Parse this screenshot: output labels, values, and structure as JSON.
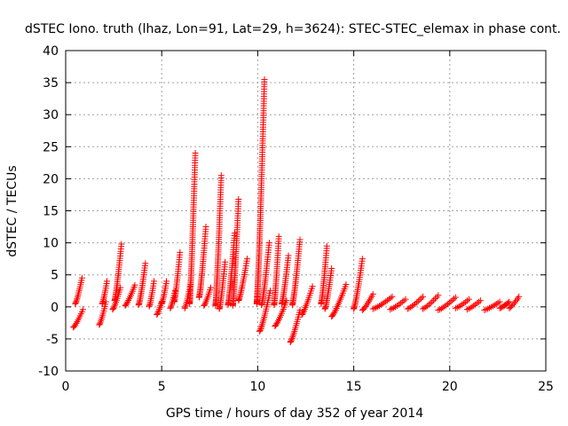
{
  "chart_data": {
    "type": "scatter",
    "title": "dSTEC Iono. truth (lhaz, Lon=91, Lat=29, h=3624): STEC-STEC_elemax in phase cont.",
    "xlabel": "GPS time / hours of day 352 of year 2014",
    "ylabel": "dSTEC  / TECUs",
    "xlim": [
      0,
      25
    ],
    "ylim": [
      -10,
      40
    ],
    "xticks": [
      0,
      5,
      10,
      15,
      20,
      25
    ],
    "yticks": [
      -10,
      -5,
      0,
      5,
      10,
      15,
      20,
      25,
      30,
      35,
      40
    ],
    "grid": true,
    "marker": "+",
    "color": "#ff0000",
    "arcs": [
      {
        "x": [
          0.4,
          0.9
        ],
        "y": [
          -3.2,
          -0.4
        ]
      },
      {
        "x": [
          0.5,
          0.85
        ],
        "y": [
          0.5,
          4.5
        ]
      },
      {
        "x": [
          1.75,
          2.1
        ],
        "y": [
          -2.8,
          0.8
        ]
      },
      {
        "x": [
          1.9,
          2.15
        ],
        "y": [
          0.5,
          4.0
        ]
      },
      {
        "x": [
          2.45,
          2.85
        ],
        "y": [
          -0.4,
          3.0
        ]
      },
      {
        "x": [
          2.55,
          2.9
        ],
        "y": [
          1.0,
          9.8
        ]
      },
      {
        "x": [
          3.1,
          3.6
        ],
        "y": [
          0.2,
          3.4
        ]
      },
      {
        "x": [
          3.8,
          4.15
        ],
        "y": [
          0.3,
          6.8
        ]
      },
      {
        "x": [
          4.35,
          4.6
        ],
        "y": [
          0.1,
          4.0
        ]
      },
      {
        "x": [
          4.75,
          5.0
        ],
        "y": [
          -1.2,
          0.8
        ]
      },
      {
        "x": [
          5.0,
          5.25
        ],
        "y": [
          0.5,
          4.0
        ]
      },
      {
        "x": [
          5.45,
          5.7
        ],
        "y": [
          -0.2,
          2.5
        ]
      },
      {
        "x": [
          5.65,
          5.95
        ],
        "y": [
          0.8,
          8.5
        ]
      },
      {
        "x": [
          6.2,
          6.5
        ],
        "y": [
          -0.2,
          3.5
        ]
      },
      {
        "x": [
          6.45,
          6.75
        ],
        "y": [
          0.5,
          24.0
        ]
      },
      {
        "x": [
          6.95,
          7.3
        ],
        "y": [
          1.5,
          12.5
        ]
      },
      {
        "x": [
          7.2,
          7.55
        ],
        "y": [
          0.2,
          3.0
        ]
      },
      {
        "x": [
          7.8,
          8.1
        ],
        "y": [
          0.2,
          20.5
        ]
      },
      {
        "x": [
          8.0,
          8.3
        ],
        "y": [
          -0.3,
          7.0
        ]
      },
      {
        "x": [
          8.45,
          8.8
        ],
        "y": [
          0.3,
          11.5
        ]
      },
      {
        "x": [
          8.7,
          9.0
        ],
        "y": [
          0.2,
          16.8
        ]
      },
      {
        "x": [
          9.0,
          9.45
        ],
        "y": [
          1.0,
          7.5
        ]
      },
      {
        "x": [
          9.95,
          10.35
        ],
        "y": [
          0.5,
          35.5
        ]
      },
      {
        "x": [
          10.1,
          10.65
        ],
        "y": [
          -3.8,
          2.5
        ]
      },
      {
        "x": [
          10.2,
          10.6
        ],
        "y": [
          0.3,
          10.0
        ]
      },
      {
        "x": [
          10.85,
          11.1
        ],
        "y": [
          0.3,
          11.0
        ]
      },
      {
        "x": [
          10.9,
          11.5
        ],
        "y": [
          -3.0,
          1.0
        ]
      },
      {
        "x": [
          11.25,
          11.6
        ],
        "y": [
          0.5,
          8.0
        ]
      },
      {
        "x": [
          11.8,
          12.2
        ],
        "y": [
          0.3,
          10.5
        ]
      },
      {
        "x": [
          11.7,
          12.2
        ],
        "y": [
          -5.5,
          -0.5
        ]
      },
      {
        "x": [
          12.3,
          12.85
        ],
        "y": [
          -1.2,
          3.2
        ]
      },
      {
        "x": [
          13.3,
          13.6
        ],
        "y": [
          0.5,
          9.5
        ]
      },
      {
        "x": [
          13.5,
          13.85
        ],
        "y": [
          -0.3,
          6.0
        ]
      },
      {
        "x": [
          13.85,
          14.6
        ],
        "y": [
          -1.5,
          3.5
        ]
      },
      {
        "x": [
          15.0,
          15.45
        ],
        "y": [
          -0.3,
          7.5
        ]
      },
      {
        "x": [
          15.45,
          16.0
        ],
        "y": [
          -0.5,
          2.0
        ]
      },
      {
        "x": [
          16.0,
          17.0
        ],
        "y": [
          -0.3,
          1.6
        ]
      },
      {
        "x": [
          16.9,
          17.7
        ],
        "y": [
          -0.4,
          1.2
        ]
      },
      {
        "x": [
          17.8,
          18.6
        ],
        "y": [
          -0.3,
          1.6
        ]
      },
      {
        "x": [
          18.6,
          19.4
        ],
        "y": [
          -0.3,
          1.8
        ]
      },
      {
        "x": [
          19.4,
          20.3
        ],
        "y": [
          -0.5,
          1.5
        ]
      },
      {
        "x": [
          20.3,
          21.0
        ],
        "y": [
          -0.2,
          1.2
        ]
      },
      {
        "x": [
          20.9,
          21.6
        ],
        "y": [
          -0.4,
          1.0
        ]
      },
      {
        "x": [
          21.8,
          22.6
        ],
        "y": [
          -0.5,
          0.8
        ]
      },
      {
        "x": [
          22.6,
          23.1
        ],
        "y": [
          -0.2,
          0.8
        ]
      },
      {
        "x": [
          23.1,
          23.6
        ],
        "y": [
          -0.2,
          1.6
        ]
      }
    ]
  }
}
